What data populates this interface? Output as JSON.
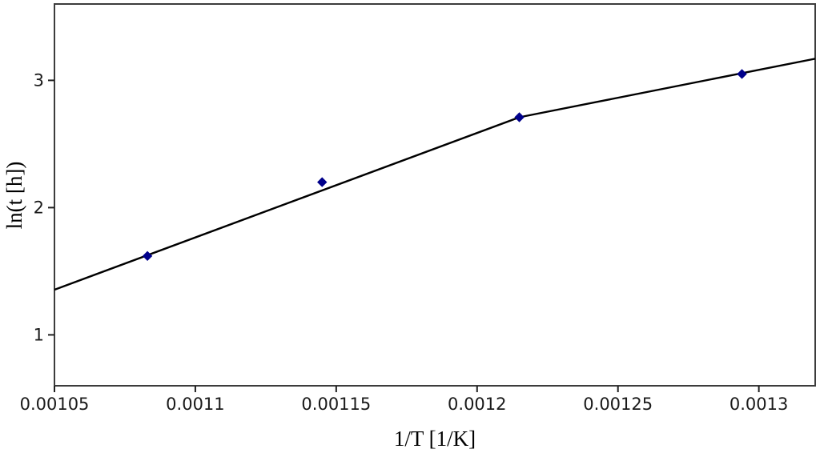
{
  "chart_data": {
    "type": "scatter",
    "title": "",
    "xlabel": "1/T [1/K]",
    "ylabel": "ln(t [h])",
    "xlim": [
      0.00105,
      0.00132
    ],
    "ylim": [
      0.6,
      3.6
    ],
    "grid": false,
    "legend": null,
    "x_ticks": [
      {
        "value": 0.00105,
        "label": "0.00105"
      },
      {
        "value": 0.0011,
        "label": "0.0011"
      },
      {
        "value": 0.00115,
        "label": "0.00115"
      },
      {
        "value": 0.0012,
        "label": "0.0012"
      },
      {
        "value": 0.00125,
        "label": "0.00125"
      },
      {
        "value": 0.0013,
        "label": "0.0013"
      }
    ],
    "y_ticks": [
      {
        "value": 1,
        "label": "1"
      },
      {
        "value": 2,
        "label": "2"
      },
      {
        "value": 3,
        "label": "3"
      }
    ],
    "series": [
      {
        "name": "fit-line",
        "type": "line",
        "color": "#000000",
        "points": [
          {
            "x": 0.00105,
            "y": 1.355
          },
          {
            "x": 0.001215,
            "y": 2.71
          },
          {
            "x": 0.00132,
            "y": 3.17
          }
        ]
      },
      {
        "name": "measurements",
        "type": "scatter",
        "marker": "diamond",
        "color": "#00008b",
        "points": [
          {
            "x": 0.001083,
            "y": 1.62
          },
          {
            "x": 0.001145,
            "y": 2.2
          },
          {
            "x": 0.001215,
            "y": 2.71
          },
          {
            "x": 0.001294,
            "y": 3.05
          }
        ]
      }
    ]
  },
  "colors": {
    "background": "#ffffff",
    "frame": "#3c3c3c",
    "tick": "#1f1f1f"
  }
}
